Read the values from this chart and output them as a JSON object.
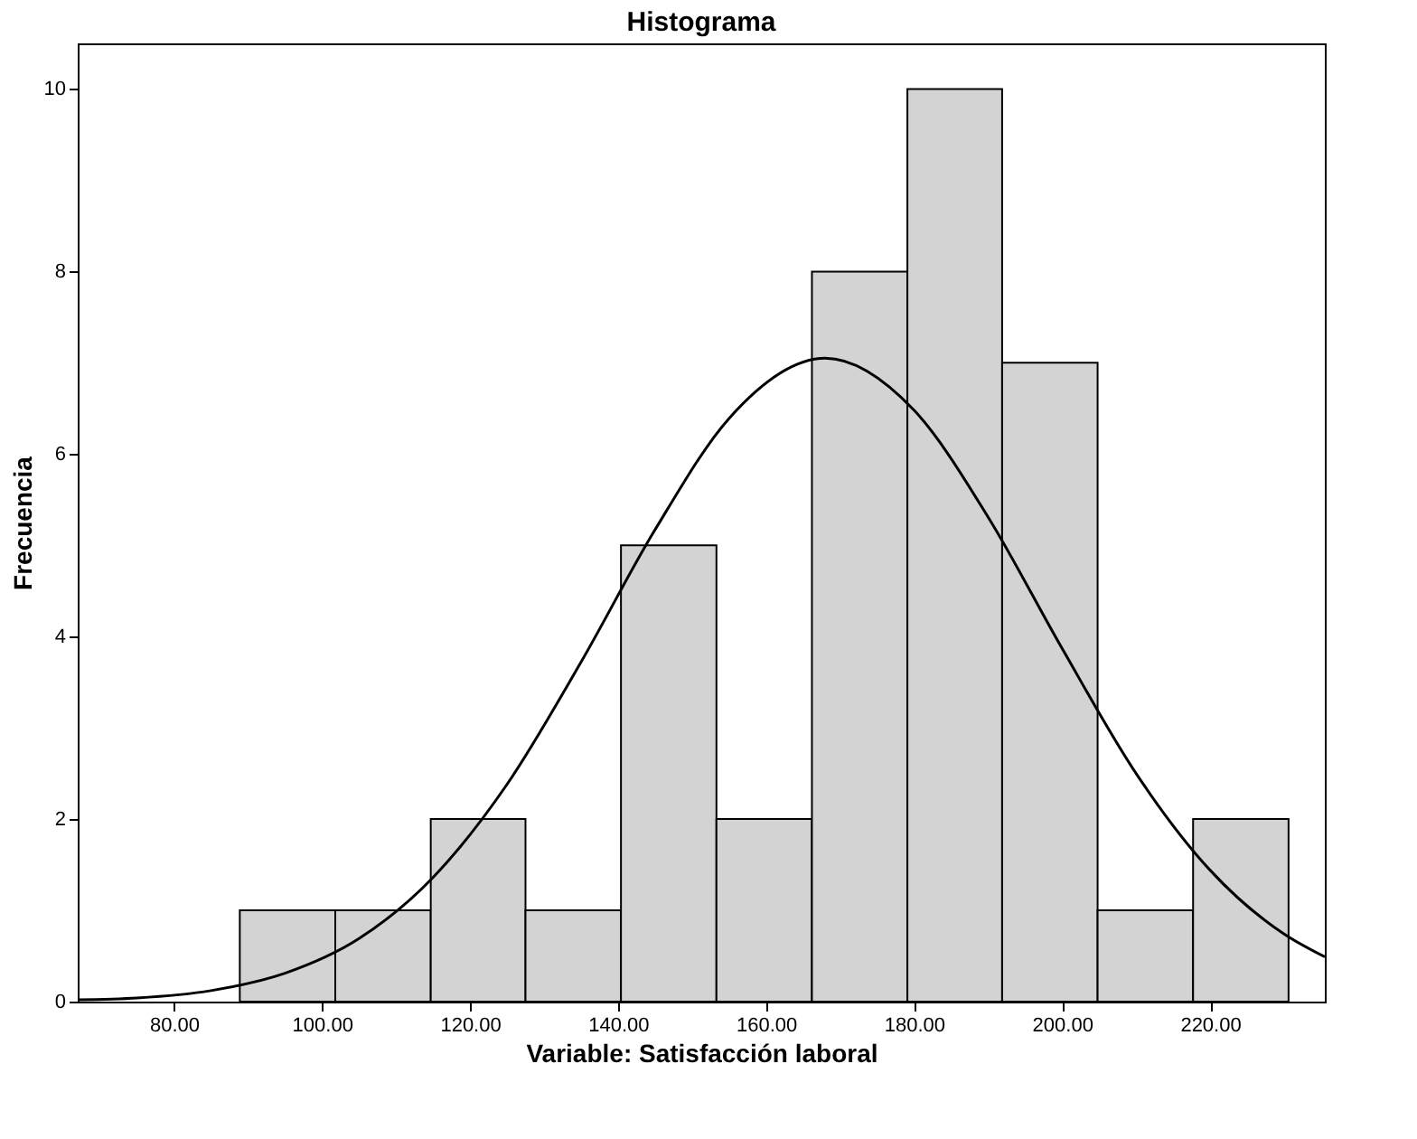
{
  "chart_data": {
    "type": "histogram",
    "title": "Histograma",
    "xlabel": "Variable: Satisfacción laboral",
    "ylabel": "Frecuencia",
    "bins": [
      88.9,
      101.8,
      114.7,
      127.5,
      140.4,
      153.3,
      166.2,
      179.1,
      191.9,
      204.8,
      217.7,
      230.6
    ],
    "values": [
      1,
      1,
      2,
      1,
      5,
      2,
      8,
      10,
      7,
      1,
      2
    ],
    "color": "#d3d3d3",
    "series": [
      {
        "type": "line",
        "color": "#000000",
        "x": [
          67,
          75,
          85,
          95,
          105,
          115,
          125,
          135,
          145,
          155,
          168,
          180,
          190,
          200,
          210,
          220,
          230,
          235.5
        ],
        "values": [
          0.02,
          0.04,
          0.12,
          0.31,
          0.69,
          1.36,
          2.38,
          3.72,
          5.17,
          6.39,
          7.05,
          6.48,
          5.31,
          3.87,
          2.5,
          1.44,
          0.74,
          0.49
        ]
      }
    ],
    "xlim": [
      67,
      235.5
    ],
    "xticks": [
      {
        "value": 80,
        "label": "80.00"
      },
      {
        "value": 100,
        "label": "100.00"
      },
      {
        "value": 120,
        "label": "120.00"
      },
      {
        "value": 140,
        "label": "140.00"
      },
      {
        "value": 160,
        "label": "160.00"
      },
      {
        "value": 180,
        "label": "180.00"
      },
      {
        "value": 200,
        "label": "200.00"
      },
      {
        "value": 220,
        "label": "220.00"
      }
    ],
    "ylim": [
      0,
      10.5
    ],
    "yticks": [
      0,
      2,
      4,
      6,
      8,
      10
    ],
    "grid": false
  }
}
